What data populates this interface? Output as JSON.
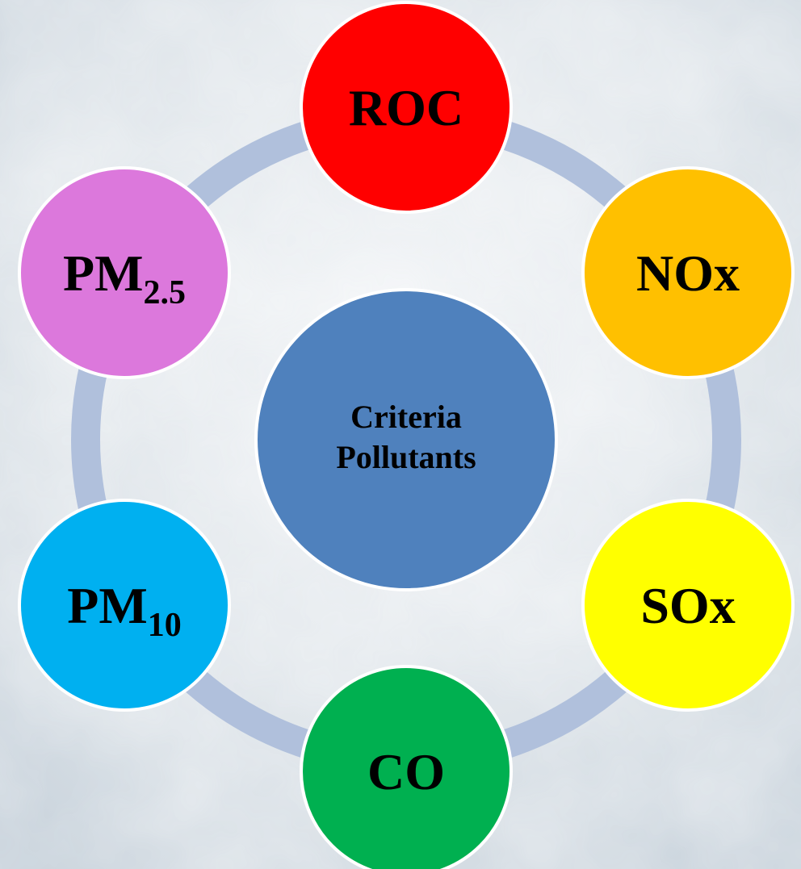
{
  "center": {
    "lines": [
      "Criteria",
      "Pollutants"
    ]
  },
  "nodes": [
    {
      "label": "ROC",
      "color": "#ff0000"
    },
    {
      "label": "NOx",
      "color": "#ffc000"
    },
    {
      "label": "SOx",
      "color": "#ffff00"
    },
    {
      "label": "CO",
      "color": "#00b050"
    },
    {
      "label": "PM",
      "sub": "10",
      "color": "#00b0f0"
    },
    {
      "label": "PM",
      "sub": "2.5",
      "color": "#dc78dc"
    }
  ]
}
